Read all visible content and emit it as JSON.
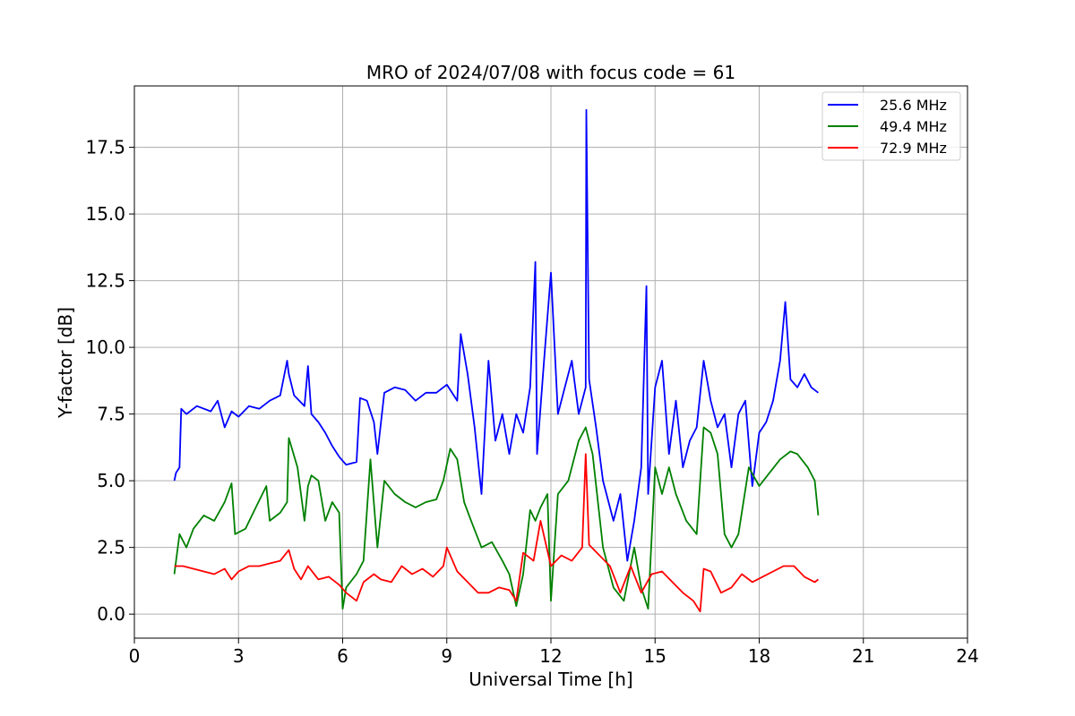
{
  "chart_data": {
    "type": "line",
    "title": "MRO of 2024/07/08 with focus code = 61",
    "xlabel": "Universal Time [h]",
    "ylabel": "Y-factor [dB]",
    "xlim": [
      0,
      24
    ],
    "ylim": [
      -0.9,
      19.8
    ],
    "xticks": [
      0,
      3,
      6,
      9,
      12,
      15,
      18,
      21,
      24
    ],
    "xtick_labels": [
      "0",
      "3",
      "6",
      "9",
      "12",
      "15",
      "18",
      "21",
      "24"
    ],
    "yticks": [
      0.0,
      2.5,
      5.0,
      7.5,
      10.0,
      12.5,
      15.0,
      17.5
    ],
    "ytick_labels": [
      "0.0",
      "2.5",
      "5.0",
      "7.5",
      "10.0",
      "12.5",
      "15.0",
      "17.5"
    ],
    "grid": true,
    "legend_position": "top-right",
    "series": [
      {
        "name": "25.6 MHz",
        "color": "#0000ff",
        "x": [
          1.15,
          1.2,
          1.3,
          1.35,
          1.5,
          1.8,
          2.2,
          2.4,
          2.6,
          2.8,
          3.0,
          3.3,
          3.6,
          3.9,
          4.2,
          4.4,
          4.45,
          4.6,
          4.9,
          5.0,
          5.1,
          5.3,
          5.5,
          5.7,
          5.9,
          6.1,
          6.4,
          6.5,
          6.7,
          6.9,
          7.0,
          7.2,
          7.5,
          7.8,
          8.1,
          8.4,
          8.7,
          9.0,
          9.3,
          9.4,
          9.6,
          9.8,
          10.0,
          10.2,
          10.4,
          10.6,
          10.8,
          11.0,
          11.2,
          11.4,
          11.55,
          11.6,
          11.8,
          12.0,
          12.2,
          12.4,
          12.6,
          12.8,
          13.0,
          13.02,
          13.1,
          13.3,
          13.5,
          13.8,
          14.0,
          14.2,
          14.4,
          14.6,
          14.75,
          14.8,
          15.0,
          15.2,
          15.4,
          15.6,
          15.8,
          16.0,
          16.2,
          16.4,
          16.6,
          16.8,
          17.0,
          17.2,
          17.4,
          17.6,
          17.8,
          18.0,
          18.2,
          18.4,
          18.6,
          18.75,
          18.9,
          19.1,
          19.3,
          19.5,
          19.7
        ],
        "y": [
          5.0,
          5.3,
          5.5,
          7.7,
          7.5,
          7.8,
          7.6,
          8.0,
          7.0,
          7.6,
          7.4,
          7.8,
          7.7,
          8.0,
          8.2,
          9.5,
          9.0,
          8.2,
          7.8,
          9.3,
          7.5,
          7.2,
          6.8,
          6.3,
          5.9,
          5.6,
          5.7,
          8.1,
          8.0,
          7.2,
          6.0,
          8.3,
          8.5,
          8.4,
          8.0,
          8.3,
          8.3,
          8.6,
          8.0,
          10.5,
          9.0,
          7.0,
          4.5,
          9.5,
          6.5,
          7.5,
          6.0,
          7.5,
          6.8,
          8.5,
          13.2,
          6.0,
          9.5,
          12.8,
          7.5,
          8.5,
          9.5,
          7.5,
          8.5,
          18.9,
          8.8,
          7.0,
          5.0,
          3.5,
          4.5,
          2.0,
          3.5,
          5.5,
          12.3,
          4.5,
          8.5,
          9.5,
          6.0,
          8.0,
          5.5,
          6.5,
          7.0,
          9.5,
          8.0,
          7.0,
          7.5,
          5.5,
          7.5,
          8.0,
          4.8,
          6.8,
          7.2,
          8.0,
          9.5,
          11.7,
          8.8,
          8.5,
          9.0,
          8.5,
          8.3
        ]
      },
      {
        "name": "49.4 MHz",
        "color": "#008000",
        "x": [
          1.15,
          1.3,
          1.5,
          1.7,
          2.0,
          2.3,
          2.6,
          2.8,
          2.9,
          3.2,
          3.5,
          3.8,
          3.9,
          4.2,
          4.4,
          4.45,
          4.7,
          4.9,
          5.0,
          5.1,
          5.3,
          5.5,
          5.7,
          5.9,
          6.0,
          6.1,
          6.4,
          6.6,
          6.8,
          7.0,
          7.2,
          7.5,
          7.8,
          8.1,
          8.4,
          8.7,
          8.9,
          9.1,
          9.3,
          9.5,
          9.7,
          10.0,
          10.3,
          10.6,
          10.8,
          11.0,
          11.2,
          11.4,
          11.55,
          11.7,
          11.9,
          12.0,
          12.2,
          12.5,
          12.8,
          13.0,
          13.2,
          13.5,
          13.8,
          14.1,
          14.4,
          14.6,
          14.8,
          15.0,
          15.2,
          15.4,
          15.6,
          15.9,
          16.2,
          16.4,
          16.6,
          16.8,
          17.0,
          17.2,
          17.4,
          17.7,
          18.0,
          18.3,
          18.6,
          18.9,
          19.1,
          19.4,
          19.6,
          19.7
        ],
        "y": [
          1.5,
          3.0,
          2.5,
          3.2,
          3.7,
          3.5,
          4.2,
          4.9,
          3.0,
          3.2,
          4.0,
          4.8,
          3.5,
          3.8,
          4.2,
          6.6,
          5.5,
          3.5,
          4.8,
          5.2,
          5.0,
          3.5,
          4.2,
          3.8,
          0.2,
          1.0,
          1.5,
          2.0,
          5.8,
          2.5,
          5.0,
          4.5,
          4.2,
          4.0,
          4.2,
          4.3,
          5.0,
          6.2,
          5.8,
          4.2,
          3.5,
          2.5,
          2.7,
          2.0,
          1.5,
          0.3,
          1.5,
          3.9,
          3.5,
          4.0,
          4.5,
          0.5,
          4.5,
          5.0,
          6.5,
          7.0,
          6.0,
          2.5,
          1.0,
          0.5,
          2.5,
          1.0,
          0.2,
          5.5,
          4.5,
          5.5,
          4.5,
          3.5,
          3.0,
          7.0,
          6.8,
          6.0,
          3.0,
          2.5,
          3.0,
          5.5,
          4.8,
          5.3,
          5.8,
          6.1,
          6.0,
          5.5,
          5.0,
          3.7
        ]
      },
      {
        "name": "72.9 MHz",
        "color": "#ff0000",
        "x": [
          1.15,
          1.4,
          1.7,
          2.0,
          2.3,
          2.6,
          2.8,
          3.0,
          3.3,
          3.6,
          3.9,
          4.2,
          4.45,
          4.6,
          4.8,
          5.0,
          5.3,
          5.6,
          5.9,
          6.1,
          6.4,
          6.6,
          6.9,
          7.1,
          7.4,
          7.7,
          8.0,
          8.3,
          8.6,
          8.9,
          9.0,
          9.3,
          9.6,
          9.9,
          10.2,
          10.5,
          10.8,
          11.0,
          11.2,
          11.5,
          11.7,
          12.0,
          12.3,
          12.6,
          12.9,
          13.0,
          13.1,
          13.4,
          13.7,
          14.0,
          14.3,
          14.6,
          14.9,
          15.2,
          15.5,
          15.8,
          16.1,
          16.3,
          16.4,
          16.6,
          16.9,
          17.2,
          17.5,
          17.8,
          18.1,
          18.4,
          18.7,
          19.0,
          19.3,
          19.6,
          19.7
        ],
        "y": [
          1.8,
          1.8,
          1.7,
          1.6,
          1.5,
          1.7,
          1.3,
          1.6,
          1.8,
          1.8,
          1.9,
          2.0,
          2.4,
          1.7,
          1.3,
          1.8,
          1.3,
          1.4,
          1.1,
          0.8,
          0.5,
          1.2,
          1.5,
          1.3,
          1.2,
          1.8,
          1.5,
          1.7,
          1.4,
          1.8,
          2.5,
          1.6,
          1.2,
          0.8,
          0.8,
          1.0,
          0.9,
          0.5,
          2.3,
          2.0,
          3.5,
          1.8,
          2.2,
          2.0,
          2.5,
          6.0,
          2.6,
          2.2,
          1.8,
          0.8,
          1.8,
          0.8,
          1.5,
          1.6,
          1.2,
          0.8,
          0.5,
          0.1,
          1.7,
          1.6,
          0.8,
          1.0,
          1.5,
          1.2,
          1.4,
          1.6,
          1.8,
          1.8,
          1.4,
          1.2,
          1.3
        ]
      }
    ]
  }
}
